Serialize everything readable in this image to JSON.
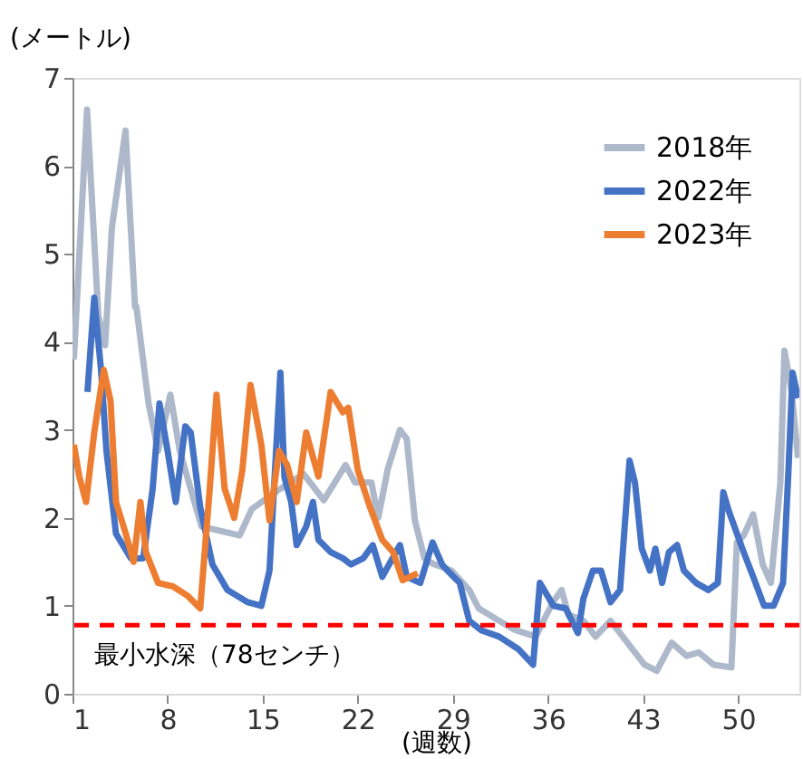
{
  "chart_data": {
    "type": "line",
    "xlabel": "(週数)",
    "ylabel": "(メートル)",
    "xlim": [
      1,
      54.5
    ],
    "xticks": [
      1,
      8,
      15,
      22,
      29,
      36,
      43,
      50
    ],
    "ylim": [
      0,
      7
    ],
    "yticks": [
      0,
      1,
      2,
      3,
      4,
      5,
      6,
      7
    ],
    "grid": false,
    "legend": "top right",
    "marker": "none",
    "line_style": "solid",
    "series": [
      {
        "name": "2018年",
        "color": "#adb9ca",
        "x": [
          1.1,
          2.07,
          2.9,
          3.4,
          3.9,
          4.9,
          5.6,
          5.7,
          6.6,
          7.3,
          8.2,
          8.9,
          10.5,
          13.3,
          14.2,
          16,
          18,
          19.5,
          21.1,
          21.8,
          23,
          23.5,
          24.2,
          25.1,
          25.6,
          26.2,
          26.9,
          27.5,
          28.9,
          30.2,
          30.9,
          32.4,
          33.5,
          35.1,
          35.9,
          36.4,
          37,
          37.5,
          38.6,
          39.5,
          40.6,
          41.5,
          43.1,
          44,
          45.1,
          46.2,
          47.1,
          48.2,
          49.5,
          49.9,
          50.4,
          51.1,
          51.8,
          52.4,
          53.1,
          53.4,
          53.9,
          54.4
        ],
        "values": [
          3.8,
          6.64,
          4.3,
          3.96,
          5.3,
          6.4,
          4.4,
          4.4,
          3.3,
          2.76,
          3.4,
          2.76,
          1.9,
          1.8,
          2.1,
          2.3,
          2.5,
          2.2,
          2.6,
          2.4,
          2.4,
          2.0,
          2.55,
          3.0,
          2.9,
          1.97,
          1.54,
          1.48,
          1.4,
          1.18,
          0.97,
          0.83,
          0.73,
          0.65,
          0.9,
          1.05,
          1.18,
          0.9,
          0.83,
          0.65,
          0.83,
          0.65,
          0.33,
          0.26,
          0.58,
          0.43,
          0.47,
          0.33,
          0.3,
          1.72,
          1.8,
          2.04,
          1.47,
          1.26,
          2.4,
          3.9,
          3.47,
          2.68
        ]
      },
      {
        "name": "2022年",
        "color": "#4472c4",
        "x": [
          2.1,
          2.6,
          3.1,
          3.5,
          4.2,
          5.3,
          6.2,
          6.9,
          7.4,
          8,
          8.6,
          9.3,
          9.7,
          10.4,
          11.3,
          12.4,
          13.9,
          14.9,
          15.5,
          16.3,
          16.6,
          17.1,
          17.5,
          18.2,
          18.7,
          19.1,
          20,
          20.9,
          21.5,
          22.4,
          23.1,
          23.8,
          25.1,
          25.6,
          26.6,
          27.5,
          28.2,
          28.6,
          29.5,
          30.2,
          31.1,
          32.4,
          33.8,
          34.9,
          35.4,
          36.4,
          37.3,
          38.2,
          38.6,
          39.3,
          39.9,
          40.6,
          41.3,
          42,
          42.4,
          42.9,
          43.5,
          43.9,
          44.4,
          44.9,
          45.5,
          46,
          46.9,
          47.8,
          48.5,
          48.9,
          49.3,
          50.4,
          51.1,
          51.9,
          52.6,
          53.3,
          53.7,
          54,
          54.4
        ],
        "values": [
          3.43,
          4.5,
          3.68,
          2.76,
          1.82,
          1.54,
          1.54,
          2.33,
          3.3,
          2.76,
          2.18,
          3.04,
          2.97,
          2.12,
          1.47,
          1.18,
          1.04,
          1.0,
          1.4,
          3.65,
          2.46,
          2.18,
          1.69,
          1.9,
          2.18,
          1.75,
          1.61,
          1.54,
          1.47,
          1.54,
          1.69,
          1.33,
          1.69,
          1.33,
          1.26,
          1.72,
          1.47,
          1.4,
          1.26,
          0.83,
          0.72,
          0.65,
          0.51,
          0.33,
          1.26,
          1.0,
          0.97,
          0.69,
          1.08,
          1.4,
          1.4,
          1.04,
          1.18,
          2.65,
          2.4,
          1.65,
          1.4,
          1.65,
          1.26,
          1.61,
          1.69,
          1.4,
          1.26,
          1.18,
          1.26,
          2.29,
          2.08,
          1.61,
          1.33,
          1.0,
          1.0,
          1.26,
          2.55,
          3.65,
          3.36
        ]
      },
      {
        "name": "2023年",
        "color": "#ed7d31",
        "x": [
          1.1,
          1.5,
          2,
          2.6,
          3.3,
          3.8,
          4.2,
          4.9,
          5.5,
          6,
          6.4,
          7.3,
          8.4,
          9.5,
          10.4,
          11.1,
          11.6,
          12.2,
          12.9,
          13.5,
          14.1,
          14.9,
          15.5,
          16.2,
          16.8,
          17.5,
          18.2,
          19.1,
          20,
          20.9,
          21.3,
          22,
          22.9,
          23.8,
          24.6,
          25.3,
          26.4
        ],
        "values": [
          2.83,
          2.47,
          2.18,
          2.97,
          3.68,
          3.33,
          2.18,
          1.83,
          1.5,
          2.18,
          1.61,
          1.26,
          1.22,
          1.11,
          0.97,
          2.33,
          3.4,
          2.33,
          2.0,
          2.54,
          3.51,
          2.83,
          1.97,
          2.76,
          2.6,
          2.18,
          2.97,
          2.47,
          3.43,
          3.2,
          3.25,
          2.54,
          2.12,
          1.75,
          1.61,
          1.29,
          1.37
        ]
      }
    ],
    "ref_lines": [
      {
        "axis": "y",
        "value": 0.78,
        "label": "最小水深（78センチ）",
        "color": "#ff0000",
        "line_style": "dashed"
      }
    ]
  }
}
